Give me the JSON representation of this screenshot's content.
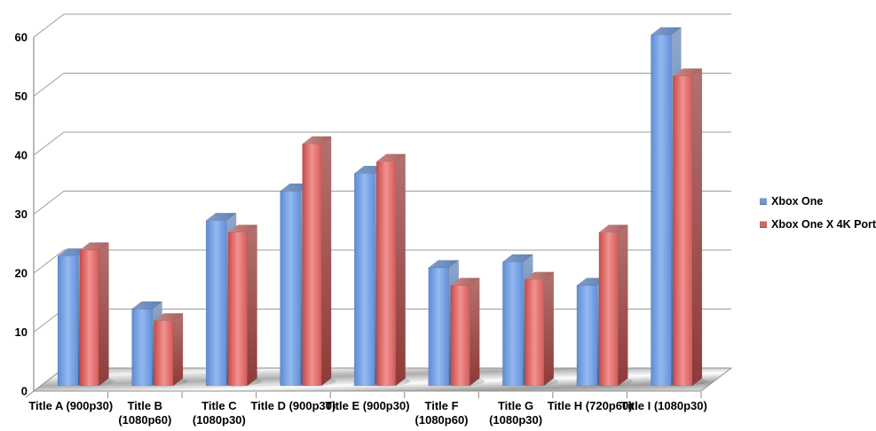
{
  "chart_data": {
    "type": "bar",
    "style": "3d-clustered-column",
    "title": "",
    "xlabel": "",
    "ylabel": "",
    "categories": [
      "Title A (900p30)",
      "Title B (1080p60)",
      "Title C (1080p30)",
      "Title D (900p30)",
      "Title E (900p30)",
      "Title F (1080p60)",
      "Title G (1080p30)",
      "Title H (720p60)",
      "Title I (1080p30)"
    ],
    "category_label_lines": [
      [
        "Title A (900p30)"
      ],
      [
        "Title B",
        "(1080p60)"
      ],
      [
        "Title C",
        "(1080p30)"
      ],
      [
        "Title D (900p30)"
      ],
      [
        "Title E (900p30)"
      ],
      [
        "Title F",
        "(1080p60)"
      ],
      [
        "Title G",
        "(1080p30)"
      ],
      [
        "Title H (720p60)"
      ],
      [
        "Title I (1080p30)"
      ]
    ],
    "series": [
      {
        "name": "Xbox One",
        "values": [
          22,
          13,
          28,
          33,
          36,
          20,
          21,
          17,
          59.5
        ],
        "colors": {
          "front": [
            "#5D8BD4",
            "#93B9F1",
            "#6290DA"
          ],
          "top": [
            "#7E9CC8",
            "#5F82B6"
          ],
          "side": [
            "#8FA8CC",
            "#46689E"
          ],
          "legend": "#7396C8"
        }
      },
      {
        "name": "Xbox One X 4K Port",
        "values": [
          23,
          11,
          26,
          41,
          38,
          17,
          18,
          26,
          52.5
        ],
        "colors": {
          "front": [
            "#C74B48",
            "#F29290",
            "#D25B58"
          ],
          "top": [
            "#C98887",
            "#A85F5E"
          ],
          "side": [
            "#B4716F",
            "#8E3B39"
          ],
          "legend": "#CC6B68"
        }
      }
    ],
    "y_axis": {
      "min": 0,
      "max": 60,
      "tick_step": 10,
      "tick_labels": [
        "0",
        "10",
        "20",
        "30",
        "40",
        "50",
        "60"
      ]
    },
    "legend_position": "right",
    "gridlines": true,
    "background": "#FFFFFF",
    "gridline_color": "#9C9C9C",
    "axis_color": "#8C8C8C",
    "floor_colors": [
      "#A6A6A6",
      "#F2F2F2",
      "#ADADAD",
      "#FDFDFD",
      "#9E9E9E",
      "#E8E8E8"
    ],
    "text_color": "#000000"
  }
}
